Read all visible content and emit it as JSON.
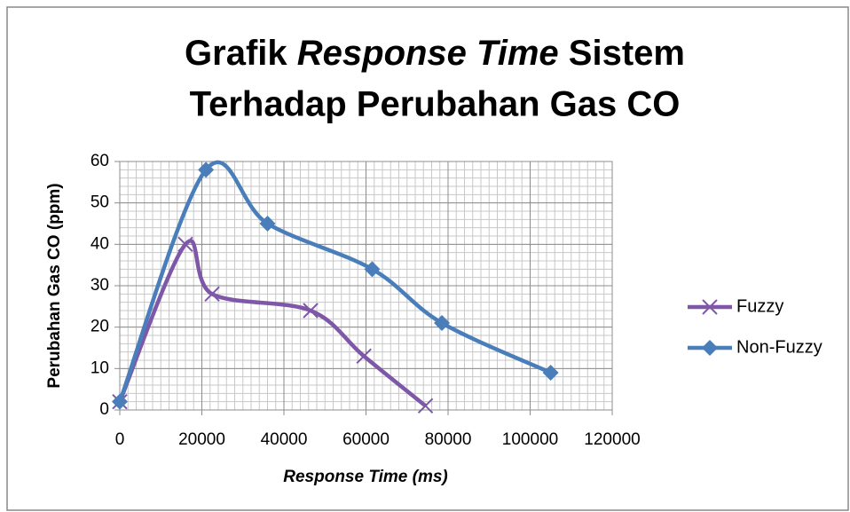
{
  "chart_data": {
    "type": "line",
    "title": [
      "Grafik",
      "Response Time",
      "Sistem",
      "Terhadap Perubahan Gas CO"
    ],
    "xlabel": "Response Time (ms)",
    "ylabel": "Perubahan Gas CO (ppm)",
    "xlim": [
      0,
      120000
    ],
    "xticks": [
      0,
      20000,
      40000,
      60000,
      80000,
      100000,
      120000
    ],
    "ylim": [
      0,
      60
    ],
    "yticks": [
      0,
      10,
      20,
      30,
      40,
      50,
      60
    ],
    "grid": true,
    "xminor": 2000,
    "yminor": 2,
    "smooth": true,
    "legend": "right",
    "series": [
      {
        "name": "Fuzzy",
        "color": "#7e57a8",
        "marker": "x",
        "x": [
          0,
          16000,
          22500,
          46500,
          59500,
          74500
        ],
        "values": [
          2,
          40,
          28,
          24,
          13,
          1
        ]
      },
      {
        "name": "Non-Fuzzy",
        "color": "#4a7ebb",
        "marker": "diamond",
        "x": [
          0,
          21000,
          36000,
          61500,
          78500,
          105000
        ],
        "values": [
          2,
          58,
          45,
          34,
          21,
          9
        ]
      }
    ]
  }
}
